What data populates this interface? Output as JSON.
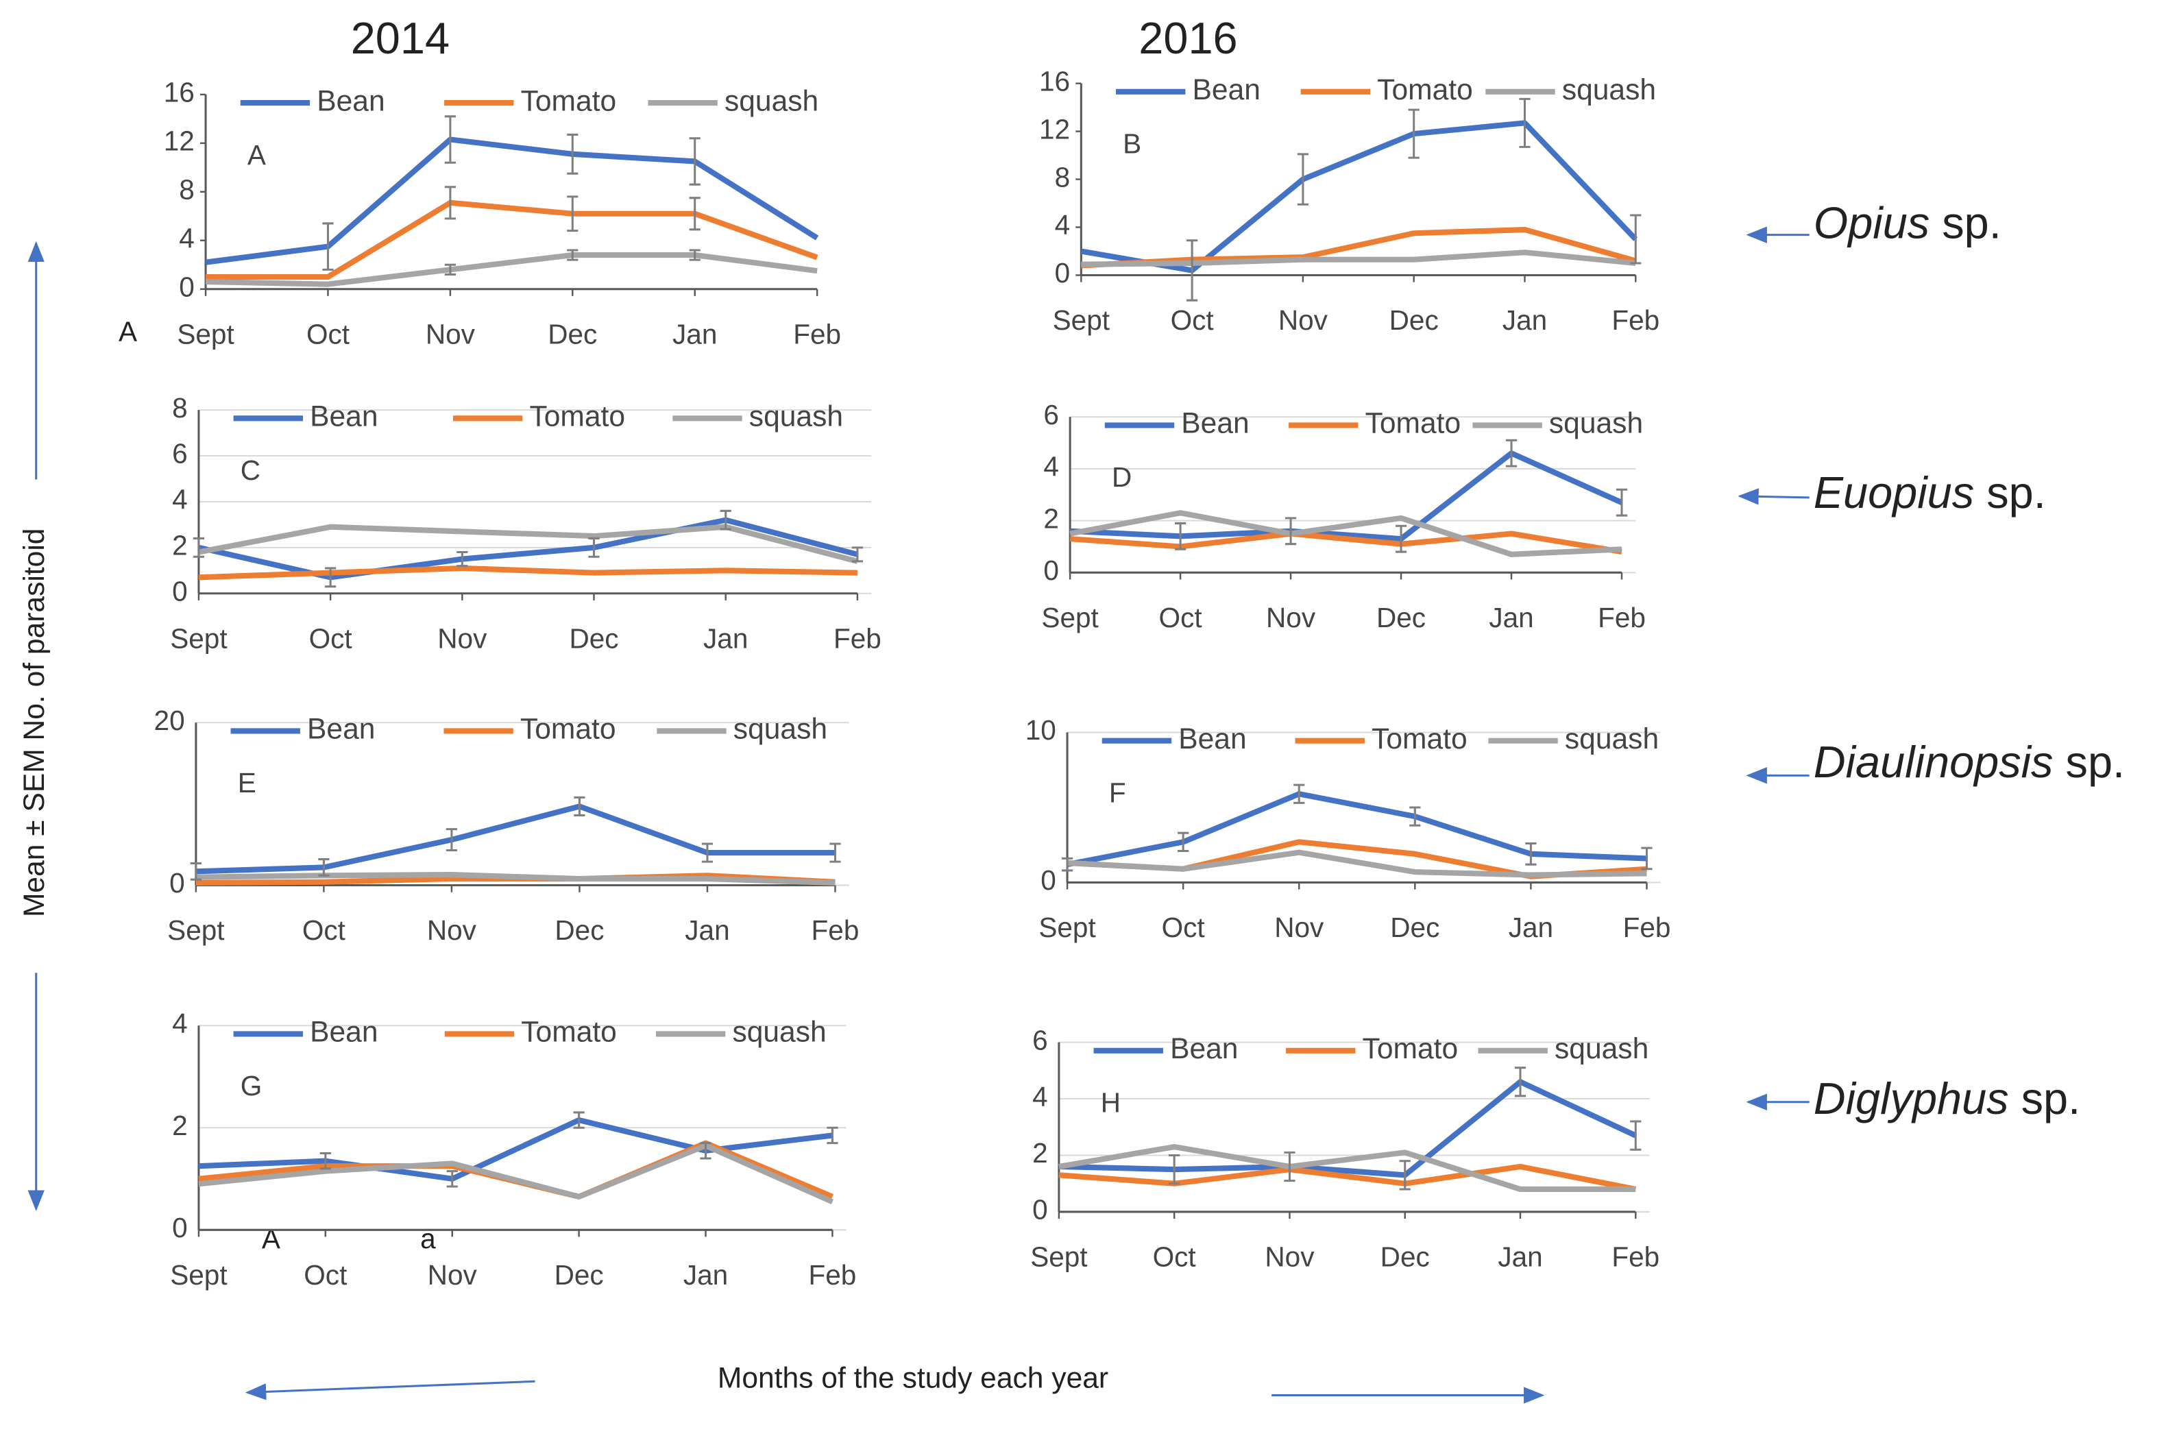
{
  "figure": {
    "columns": [
      "2014",
      "2016"
    ],
    "species": [
      {
        "genus": "Opius",
        "suffix": "sp."
      },
      {
        "genus": "Euopius",
        "suffix": "sp."
      },
      {
        "genus": "Diaulinopsis",
        "suffix": "sp."
      },
      {
        "genus": "Diglyphus",
        "suffix": "sp."
      }
    ],
    "y_label": "Mean ± SEM No. of parasitoid",
    "x_label": "Months of the study each year",
    "stray_labels": [
      "A",
      "A",
      "a"
    ]
  },
  "chart_data": [
    {
      "type": "line",
      "panel_label": "A",
      "categories": [
        "Sept",
        "Oct",
        "Nov",
        "Dec",
        "Jan",
        "Feb"
      ],
      "ylim": [
        0,
        16
      ],
      "yticks": [
        0,
        4,
        8,
        12,
        16
      ],
      "grid": false,
      "series": [
        {
          "name": "Bean",
          "color": "#4472c4",
          "values": [
            2.2,
            3.5,
            12.3,
            11.1,
            10.5,
            4.2
          ],
          "errors": [
            null,
            1.9,
            1.9,
            1.6,
            1.9,
            null
          ]
        },
        {
          "name": "Tomato",
          "color": "#ed7d31",
          "values": [
            1.0,
            1.0,
            7.1,
            6.2,
            6.2,
            2.6
          ],
          "errors": [
            null,
            null,
            1.3,
            1.4,
            1.3,
            null
          ]
        },
        {
          "name": "squash",
          "color": "#a5a5a5",
          "values": [
            0.6,
            0.4,
            1.6,
            2.8,
            2.8,
            1.5
          ],
          "errors": [
            null,
            null,
            0.4,
            0.4,
            0.4,
            null
          ]
        }
      ]
    },
    {
      "type": "line",
      "panel_label": "B",
      "categories": [
        "Sept",
        "Oct",
        "Nov",
        "Dec",
        "Jan",
        "Feb"
      ],
      "ylim": [
        0,
        16
      ],
      "yticks": [
        0,
        4,
        8,
        12,
        16
      ],
      "grid": false,
      "series": [
        {
          "name": "Bean",
          "color": "#4472c4",
          "values": [
            2.0,
            0.4,
            8.0,
            11.8,
            12.7,
            3.0
          ],
          "errors": [
            null,
            2.5,
            2.1,
            2.0,
            2.0,
            2.0
          ]
        },
        {
          "name": "Tomato",
          "color": "#ed7d31",
          "values": [
            0.8,
            1.3,
            1.5,
            3.5,
            3.8,
            1.2
          ],
          "errors": [
            null,
            null,
            null,
            null,
            null,
            null
          ]
        },
        {
          "name": "squash",
          "color": "#a5a5a5",
          "values": [
            0.9,
            1.0,
            1.3,
            1.3,
            1.9,
            1.0
          ],
          "errors": [
            null,
            null,
            null,
            null,
            null,
            null
          ]
        }
      ]
    },
    {
      "type": "line",
      "panel_label": "C",
      "categories": [
        "Sept",
        "Oct",
        "Nov",
        "Dec",
        "Jan",
        "Feb"
      ],
      "ylim": [
        0,
        8
      ],
      "yticks": [
        0,
        2,
        4,
        6,
        8
      ],
      "grid": true,
      "series": [
        {
          "name": "Bean",
          "color": "#4472c4",
          "values": [
            2.0,
            0.7,
            1.5,
            2.0,
            3.2,
            1.7
          ],
          "errors": [
            0.4,
            0.4,
            0.3,
            0.4,
            0.4,
            0.3
          ]
        },
        {
          "name": "Tomato",
          "color": "#ed7d31",
          "values": [
            0.7,
            0.9,
            1.1,
            0.9,
            1.0,
            0.9
          ],
          "errors": [
            null,
            null,
            null,
            null,
            null,
            null
          ]
        },
        {
          "name": "squash",
          "color": "#a5a5a5",
          "values": [
            1.8,
            2.9,
            2.7,
            2.5,
            2.9,
            1.4
          ],
          "errors": [
            null,
            null,
            null,
            null,
            null,
            null
          ]
        }
      ]
    },
    {
      "type": "line",
      "panel_label": "D",
      "categories": [
        "Sept",
        "Oct",
        "Nov",
        "Dec",
        "Jan",
        "Feb"
      ],
      "ylim": [
        0,
        6
      ],
      "yticks": [
        0,
        2,
        4,
        6
      ],
      "grid": true,
      "series": [
        {
          "name": "Bean",
          "color": "#4472c4",
          "values": [
            1.6,
            1.4,
            1.6,
            1.3,
            4.6,
            2.7
          ],
          "errors": [
            null,
            0.5,
            0.5,
            0.5,
            0.5,
            0.5
          ]
        },
        {
          "name": "Tomato",
          "color": "#ed7d31",
          "values": [
            1.3,
            1.0,
            1.5,
            1.1,
            1.5,
            0.8
          ],
          "errors": [
            null,
            null,
            null,
            null,
            null,
            null
          ]
        },
        {
          "name": "squash",
          "color": "#a5a5a5",
          "values": [
            1.5,
            2.3,
            1.5,
            2.1,
            0.7,
            0.9
          ],
          "errors": [
            null,
            null,
            null,
            null,
            null,
            null
          ]
        }
      ]
    },
    {
      "type": "line",
      "panel_label": "E",
      "categories": [
        "Sept",
        "Oct",
        "Nov",
        "Dec",
        "Jan",
        "Feb"
      ],
      "ylim": [
        0,
        20
      ],
      "yticks": [
        0,
        20
      ],
      "grid": true,
      "series": [
        {
          "name": "Bean",
          "color": "#4472c4",
          "values": [
            1.7,
            2.2,
            5.6,
            9.7,
            4.0,
            4.0
          ],
          "errors": [
            1.0,
            1.0,
            1.3,
            1.1,
            1.1,
            1.1
          ]
        },
        {
          "name": "Tomato",
          "color": "#ed7d31",
          "values": [
            0.3,
            0.4,
            0.8,
            0.8,
            1.2,
            0.4
          ],
          "errors": [
            null,
            null,
            null,
            null,
            null,
            null
          ]
        },
        {
          "name": "squash",
          "color": "#a5a5a5",
          "values": [
            1.0,
            1.2,
            1.3,
            0.8,
            0.8,
            0.3
          ],
          "errors": [
            null,
            null,
            null,
            null,
            null,
            null
          ]
        }
      ]
    },
    {
      "type": "line",
      "panel_label": "F",
      "categories": [
        "Sept",
        "Oct",
        "Nov",
        "Dec",
        "Jan",
        "Feb"
      ],
      "ylim": [
        0,
        10
      ],
      "yticks": [
        0,
        10
      ],
      "grid": true,
      "series": [
        {
          "name": "Bean",
          "color": "#4472c4",
          "values": [
            1.2,
            2.7,
            5.9,
            4.4,
            1.9,
            1.6
          ],
          "errors": [
            0.4,
            0.6,
            0.6,
            0.6,
            0.7,
            0.7
          ]
        },
        {
          "name": "Tomato",
          "color": "#ed7d31",
          "values": [
            1.3,
            0.9,
            2.7,
            1.9,
            0.4,
            0.9
          ],
          "errors": [
            null,
            null,
            null,
            null,
            null,
            null
          ]
        },
        {
          "name": "squash",
          "color": "#a5a5a5",
          "values": [
            1.3,
            0.9,
            2.0,
            0.7,
            0.5,
            0.6
          ],
          "errors": [
            null,
            null,
            null,
            null,
            null,
            null
          ]
        }
      ]
    },
    {
      "type": "line",
      "panel_label": "G",
      "categories": [
        "Sept",
        "Oct",
        "Nov",
        "Dec",
        "Jan",
        "Feb"
      ],
      "ylim": [
        0,
        4
      ],
      "yticks": [
        0,
        2,
        4
      ],
      "grid": true,
      "series": [
        {
          "name": "Bean",
          "color": "#4472c4",
          "values": [
            1.25,
            1.35,
            1.0,
            2.15,
            1.55,
            1.85
          ],
          "errors": [
            null,
            0.15,
            0.15,
            0.15,
            0.15,
            0.15
          ]
        },
        {
          "name": "Tomato",
          "color": "#ed7d31",
          "values": [
            1.0,
            1.25,
            1.25,
            0.65,
            1.7,
            0.65
          ],
          "errors": [
            null,
            null,
            null,
            null,
            null,
            null
          ]
        },
        {
          "name": "squash",
          "color": "#a5a5a5",
          "values": [
            0.9,
            1.15,
            1.3,
            0.65,
            1.65,
            0.55
          ],
          "errors": [
            null,
            null,
            null,
            null,
            null,
            null
          ]
        }
      ]
    },
    {
      "type": "line",
      "panel_label": "H",
      "categories": [
        "Sept",
        "Oct",
        "Nov",
        "Dec",
        "Jan",
        "Feb"
      ],
      "ylim": [
        0,
        6
      ],
      "yticks": [
        0,
        2,
        4,
        6
      ],
      "grid": true,
      "series": [
        {
          "name": "Bean",
          "color": "#4472c4",
          "values": [
            1.6,
            1.5,
            1.6,
            1.3,
            4.6,
            2.7
          ],
          "errors": [
            null,
            0.5,
            0.5,
            0.5,
            0.5,
            0.5
          ]
        },
        {
          "name": "Tomato",
          "color": "#ed7d31",
          "values": [
            1.3,
            1.0,
            1.5,
            1.0,
            1.6,
            0.8
          ],
          "errors": [
            null,
            null,
            null,
            null,
            null,
            null
          ]
        },
        {
          "name": "squash",
          "color": "#a5a5a5",
          "values": [
            1.6,
            2.3,
            1.6,
            2.1,
            0.8,
            0.8
          ],
          "errors": [
            null,
            null,
            null,
            null,
            null,
            null
          ]
        }
      ]
    }
  ]
}
